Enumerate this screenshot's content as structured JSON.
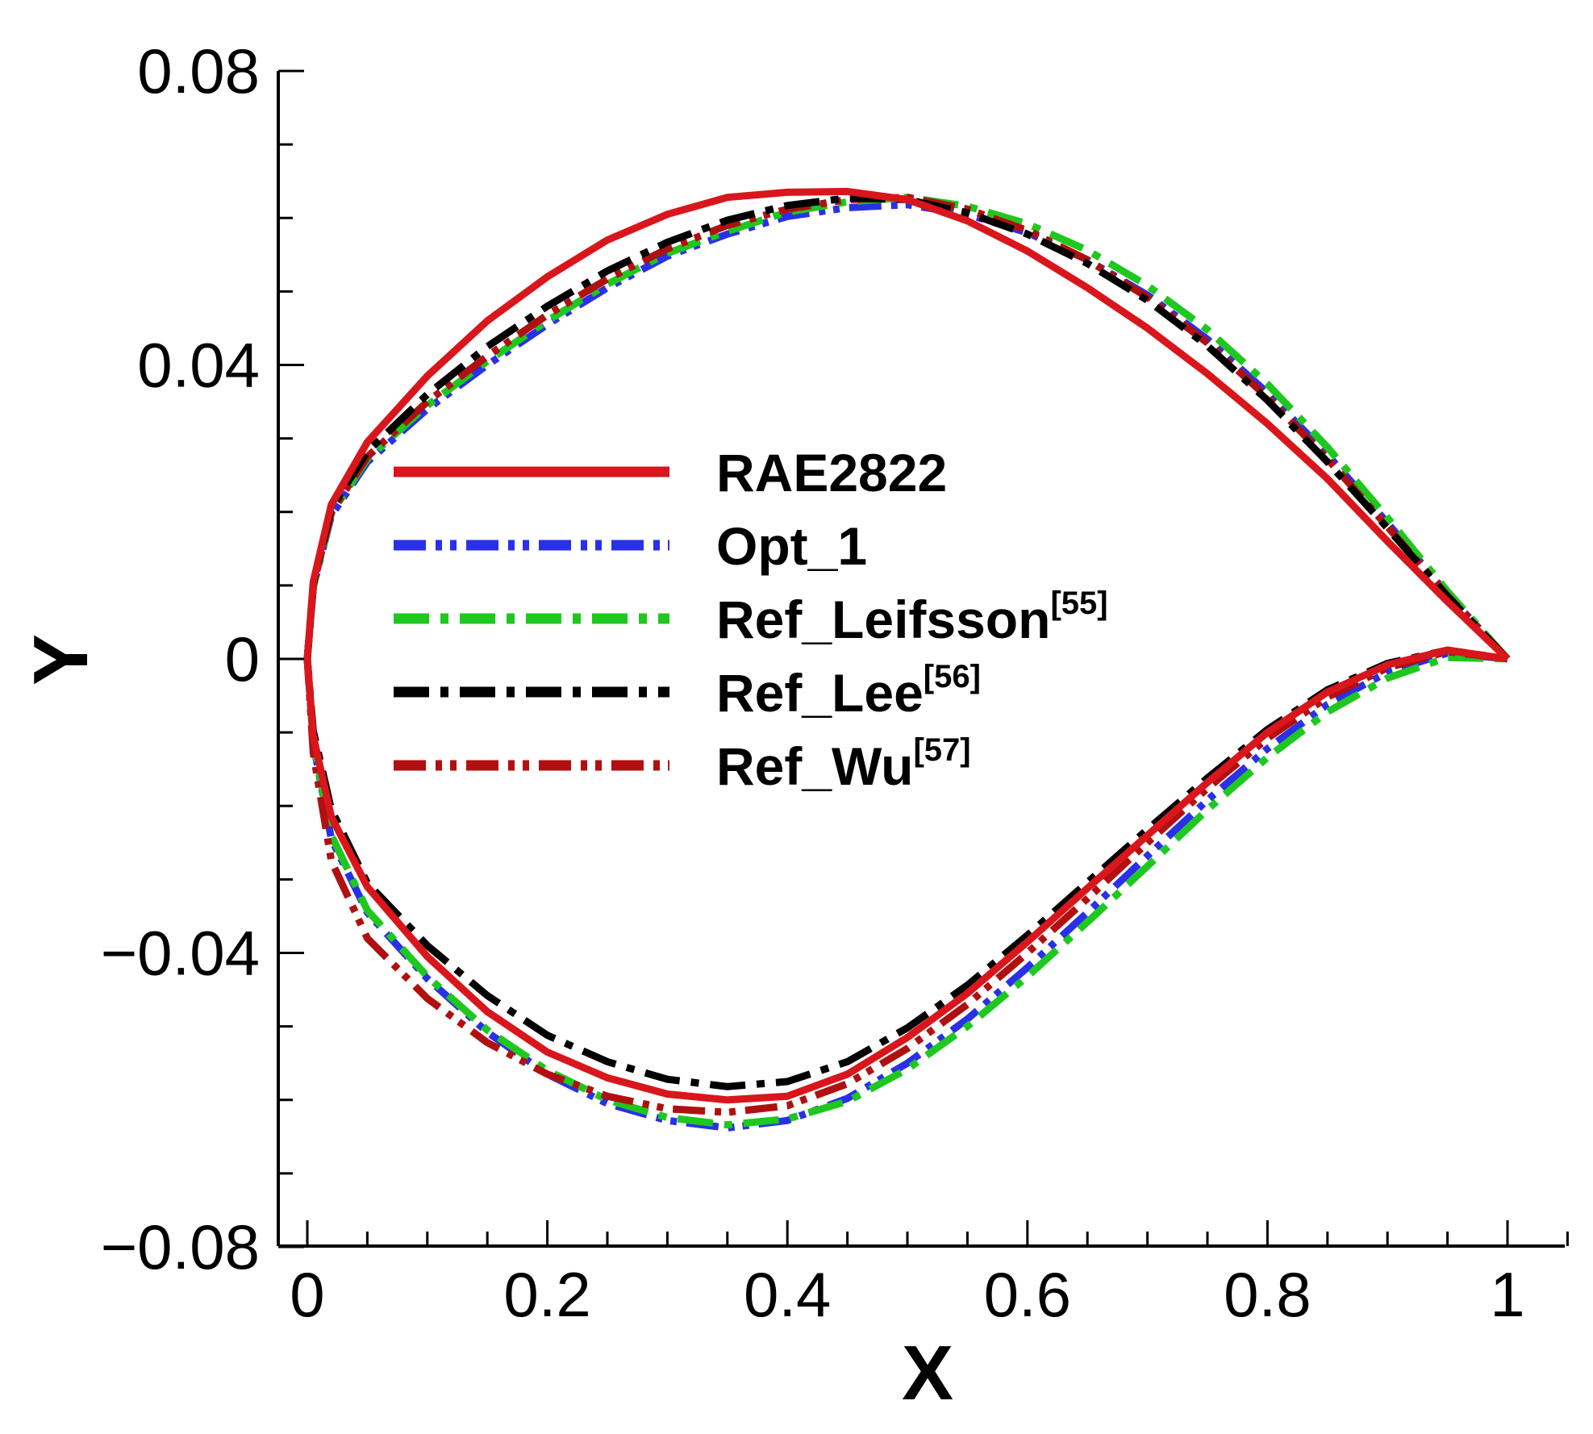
{
  "chart_data": {
    "type": "line",
    "title": "",
    "xlabel": "X",
    "ylabel": "Y",
    "xlim": [
      -0.05,
      1.05
    ],
    "ylim": [
      -0.08,
      0.08
    ],
    "xticks": [
      0,
      0.2,
      0.4,
      0.6,
      0.8,
      1
    ],
    "xtick_labels": [
      "0",
      "0.2",
      "0.4",
      "0.6",
      "0.8",
      "1"
    ],
    "yticks": [
      0.08,
      0.04,
      0,
      -0.04,
      -0.08
    ],
    "ytick_labels": [
      "0.08",
      "0.04",
      "0",
      "−0.04",
      "−0.08"
    ],
    "grid": false,
    "legend_position": "center",
    "series": [
      {
        "name": "RAE2822",
        "sup": "",
        "color": "#d9161c",
        "dash": "solid",
        "upper": [
          [
            0,
            0
          ],
          [
            0.005,
            0.0105
          ],
          [
            0.02,
            0.021
          ],
          [
            0.05,
            0.0295
          ],
          [
            0.1,
            0.0385
          ],
          [
            0.15,
            0.046
          ],
          [
            0.2,
            0.052
          ],
          [
            0.25,
            0.057
          ],
          [
            0.3,
            0.0605
          ],
          [
            0.35,
            0.0628
          ],
          [
            0.4,
            0.0635
          ],
          [
            0.45,
            0.0636
          ],
          [
            0.5,
            0.0625
          ],
          [
            0.55,
            0.0596
          ],
          [
            0.6,
            0.0555
          ],
          [
            0.65,
            0.0505
          ],
          [
            0.7,
            0.045
          ],
          [
            0.75,
            0.0388
          ],
          [
            0.8,
            0.032
          ],
          [
            0.85,
            0.0245
          ],
          [
            0.9,
            0.016
          ],
          [
            0.95,
            0.0078
          ],
          [
            1.0,
            0
          ]
        ],
        "lower": [
          [
            0,
            0
          ],
          [
            0.005,
            -0.0105
          ],
          [
            0.02,
            -0.0215
          ],
          [
            0.05,
            -0.031
          ],
          [
            0.1,
            -0.0405
          ],
          [
            0.15,
            -0.048
          ],
          [
            0.2,
            -0.0535
          ],
          [
            0.25,
            -0.057
          ],
          [
            0.3,
            -0.0592
          ],
          [
            0.35,
            -0.06
          ],
          [
            0.4,
            -0.0595
          ],
          [
            0.45,
            -0.0565
          ],
          [
            0.5,
            -0.0515
          ],
          [
            0.55,
            -0.0455
          ],
          [
            0.6,
            -0.0385
          ],
          [
            0.65,
            -0.0312
          ],
          [
            0.7,
            -0.024
          ],
          [
            0.75,
            -0.0168
          ],
          [
            0.8,
            -0.01
          ],
          [
            0.85,
            -0.0045
          ],
          [
            0.9,
            -0.0008
          ],
          [
            0.95,
            0.0012
          ],
          [
            1.0,
            0
          ]
        ]
      },
      {
        "name": "Opt_1",
        "sup": "",
        "color": "#2a30e8",
        "dash": "dashdotdot",
        "upper": [
          [
            0,
            0
          ],
          [
            0.005,
            0.0098
          ],
          [
            0.02,
            0.0195
          ],
          [
            0.05,
            0.0268
          ],
          [
            0.1,
            0.034
          ],
          [
            0.15,
            0.04
          ],
          [
            0.2,
            0.0455
          ],
          [
            0.25,
            0.0505
          ],
          [
            0.3,
            0.0548
          ],
          [
            0.35,
            0.0578
          ],
          [
            0.4,
            0.0602
          ],
          [
            0.45,
            0.0614
          ],
          [
            0.5,
            0.0618
          ],
          [
            0.55,
            0.0605
          ],
          [
            0.6,
            0.058
          ],
          [
            0.65,
            0.0543
          ],
          [
            0.7,
            0.0495
          ],
          [
            0.75,
            0.0435
          ],
          [
            0.8,
            0.0362
          ],
          [
            0.85,
            0.0278
          ],
          [
            0.9,
            0.0185
          ],
          [
            0.95,
            0.0088
          ],
          [
            1.0,
            0
          ]
        ],
        "lower": [
          [
            0,
            0
          ],
          [
            0.005,
            -0.0115
          ],
          [
            0.02,
            -0.0245
          ],
          [
            0.05,
            -0.0345
          ],
          [
            0.1,
            -0.0435
          ],
          [
            0.15,
            -0.0508
          ],
          [
            0.2,
            -0.0565
          ],
          [
            0.25,
            -0.0605
          ],
          [
            0.3,
            -0.0628
          ],
          [
            0.35,
            -0.0638
          ],
          [
            0.4,
            -0.0628
          ],
          [
            0.45,
            -0.0598
          ],
          [
            0.5,
            -0.055
          ],
          [
            0.55,
            -0.049
          ],
          [
            0.6,
            -0.042
          ],
          [
            0.65,
            -0.0345
          ],
          [
            0.7,
            -0.0268
          ],
          [
            0.75,
            -0.0192
          ],
          [
            0.8,
            -0.0122
          ],
          [
            0.85,
            -0.0062
          ],
          [
            0.9,
            -0.0018
          ],
          [
            0.95,
            0.0008
          ],
          [
            1.0,
            0
          ]
        ]
      },
      {
        "name": "Ref_Leifsson",
        "sup": "[55]",
        "color": "#1ec81e",
        "dash": "dashdot",
        "upper": [
          [
            0,
            0
          ],
          [
            0.005,
            0.0098
          ],
          [
            0.02,
            0.0198
          ],
          [
            0.05,
            0.0272
          ],
          [
            0.1,
            0.0345
          ],
          [
            0.15,
            0.0405
          ],
          [
            0.2,
            0.046
          ],
          [
            0.25,
            0.051
          ],
          [
            0.3,
            0.0552
          ],
          [
            0.35,
            0.0582
          ],
          [
            0.4,
            0.0608
          ],
          [
            0.45,
            0.0622
          ],
          [
            0.5,
            0.0628
          ],
          [
            0.55,
            0.0616
          ],
          [
            0.6,
            0.0592
          ],
          [
            0.65,
            0.0556
          ],
          [
            0.7,
            0.0508
          ],
          [
            0.75,
            0.0448
          ],
          [
            0.8,
            0.0374
          ],
          [
            0.85,
            0.0288
          ],
          [
            0.9,
            0.0192
          ],
          [
            0.95,
            0.0092
          ],
          [
            1.0,
            0
          ]
        ],
        "lower": [
          [
            0,
            0
          ],
          [
            0.005,
            -0.0112
          ],
          [
            0.02,
            -0.024
          ],
          [
            0.05,
            -0.0342
          ],
          [
            0.1,
            -0.0432
          ],
          [
            0.15,
            -0.0505
          ],
          [
            0.2,
            -0.056
          ],
          [
            0.25,
            -0.06
          ],
          [
            0.3,
            -0.0624
          ],
          [
            0.35,
            -0.0634
          ],
          [
            0.4,
            -0.0626
          ],
          [
            0.45,
            -0.0602
          ],
          [
            0.5,
            -0.0558
          ],
          [
            0.55,
            -0.05
          ],
          [
            0.6,
            -0.0432
          ],
          [
            0.65,
            -0.0358
          ],
          [
            0.7,
            -0.0282
          ],
          [
            0.75,
            -0.0205
          ],
          [
            0.8,
            -0.0134
          ],
          [
            0.85,
            -0.0072
          ],
          [
            0.9,
            -0.0026
          ],
          [
            0.95,
            0.0002
          ],
          [
            1.0,
            0
          ]
        ]
      },
      {
        "name": "Ref_Lee",
        "sup": "[56]",
        "color": "#000000",
        "dash": "dashdot",
        "upper": [
          [
            0,
            0
          ],
          [
            0.005,
            0.0102
          ],
          [
            0.02,
            0.0205
          ],
          [
            0.05,
            0.0282
          ],
          [
            0.1,
            0.036
          ],
          [
            0.15,
            0.0425
          ],
          [
            0.2,
            0.048
          ],
          [
            0.25,
            0.0528
          ],
          [
            0.3,
            0.0567
          ],
          [
            0.35,
            0.0597
          ],
          [
            0.4,
            0.0617
          ],
          [
            0.45,
            0.0627
          ],
          [
            0.5,
            0.0625
          ],
          [
            0.55,
            0.0607
          ],
          [
            0.6,
            0.0578
          ],
          [
            0.65,
            0.0538
          ],
          [
            0.7,
            0.0488
          ],
          [
            0.75,
            0.0426
          ],
          [
            0.8,
            0.0352
          ],
          [
            0.85,
            0.0268
          ],
          [
            0.9,
            0.0178
          ],
          [
            0.95,
            0.0085
          ],
          [
            1.0,
            0
          ]
        ],
        "lower": [
          [
            0,
            0
          ],
          [
            0.005,
            -0.0098
          ],
          [
            0.02,
            -0.0205
          ],
          [
            0.05,
            -0.0305
          ],
          [
            0.1,
            -0.039
          ],
          [
            0.15,
            -0.0458
          ],
          [
            0.2,
            -0.0512
          ],
          [
            0.25,
            -0.0548
          ],
          [
            0.3,
            -0.0572
          ],
          [
            0.35,
            -0.0582
          ],
          [
            0.4,
            -0.0575
          ],
          [
            0.45,
            -0.0548
          ],
          [
            0.5,
            -0.0502
          ],
          [
            0.55,
            -0.0444
          ],
          [
            0.6,
            -0.0376
          ],
          [
            0.65,
            -0.0304
          ],
          [
            0.7,
            -0.0232
          ],
          [
            0.75,
            -0.0162
          ],
          [
            0.8,
            -0.0096
          ],
          [
            0.85,
            -0.0042
          ],
          [
            0.9,
            -0.0006
          ],
          [
            0.95,
            0.0012
          ],
          [
            1.0,
            0
          ]
        ]
      },
      {
        "name": "Ref_Wu",
        "sup": "[57]",
        "color": "#b01010",
        "dash": "dashdotdot",
        "upper": [
          [
            0,
            0
          ],
          [
            0.005,
            0.01
          ],
          [
            0.02,
            0.02
          ],
          [
            0.05,
            0.0275
          ],
          [
            0.1,
            0.035
          ],
          [
            0.15,
            0.0412
          ],
          [
            0.2,
            0.0468
          ],
          [
            0.25,
            0.0517
          ],
          [
            0.3,
            0.0558
          ],
          [
            0.35,
            0.059
          ],
          [
            0.4,
            0.0612
          ],
          [
            0.45,
            0.0625
          ],
          [
            0.5,
            0.0628
          ],
          [
            0.55,
            0.0612
          ],
          [
            0.6,
            0.0583
          ],
          [
            0.65,
            0.0543
          ],
          [
            0.7,
            0.0492
          ],
          [
            0.75,
            0.043
          ],
          [
            0.8,
            0.0356
          ],
          [
            0.85,
            0.0272
          ],
          [
            0.9,
            0.018
          ],
          [
            0.95,
            0.0086
          ],
          [
            1.0,
            0
          ]
        ],
        "lower": [
          [
            0,
            0
          ],
          [
            0.005,
            -0.0128
          ],
          [
            0.02,
            -0.0275
          ],
          [
            0.05,
            -0.038
          ],
          [
            0.1,
            -0.0462
          ],
          [
            0.15,
            -0.0522
          ],
          [
            0.2,
            -0.0565
          ],
          [
            0.25,
            -0.0595
          ],
          [
            0.3,
            -0.0612
          ],
          [
            0.35,
            -0.0617
          ],
          [
            0.4,
            -0.0608
          ],
          [
            0.45,
            -0.0578
          ],
          [
            0.5,
            -0.053
          ],
          [
            0.55,
            -0.047
          ],
          [
            0.6,
            -0.04
          ],
          [
            0.65,
            -0.0326
          ],
          [
            0.7,
            -0.025
          ],
          [
            0.75,
            -0.0176
          ],
          [
            0.8,
            -0.0108
          ],
          [
            0.85,
            -0.0052
          ],
          [
            0.9,
            -0.0012
          ],
          [
            0.95,
            0.001
          ],
          [
            1.0,
            0
          ]
        ]
      }
    ]
  }
}
